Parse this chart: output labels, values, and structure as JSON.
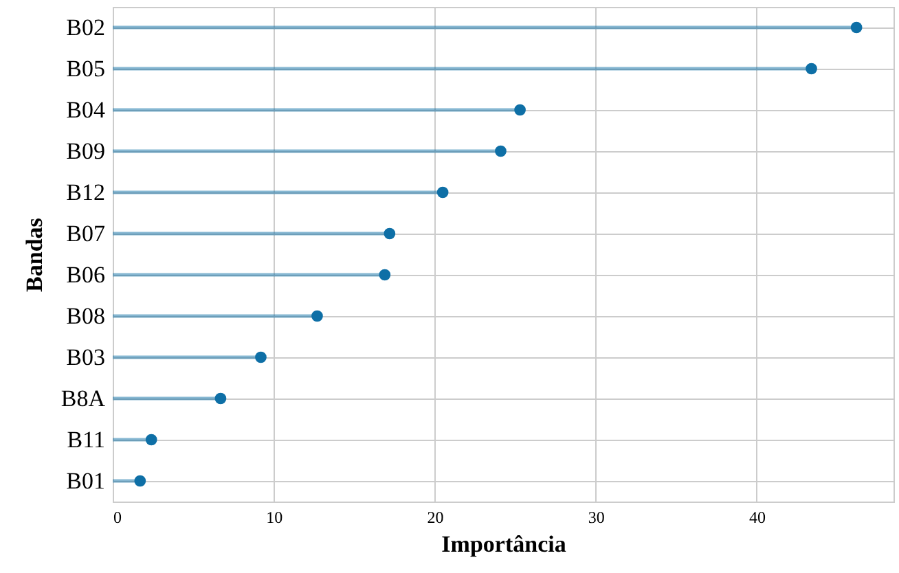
{
  "chart_data": {
    "type": "lollipop",
    "orientation": "horizontal",
    "xlabel": "Importância",
    "ylabel": "Bandas",
    "categories": [
      "B02",
      "B05",
      "B04",
      "B09",
      "B12",
      "B07",
      "B06",
      "B08",
      "B03",
      "B8A",
      "B11",
      "B01"
    ],
    "series": [
      {
        "color": "#0e6fa6",
        "values": [
          46.2,
          43.4,
          25.3,
          24.1,
          20.5,
          17.2,
          16.9,
          12.7,
          9.2,
          6.7,
          2.4,
          1.7
        ]
      }
    ],
    "xlim": [
      0,
      48.5
    ],
    "xticks": [
      0,
      10,
      20,
      30,
      40
    ],
    "grid": true,
    "marker": "circle"
  }
}
